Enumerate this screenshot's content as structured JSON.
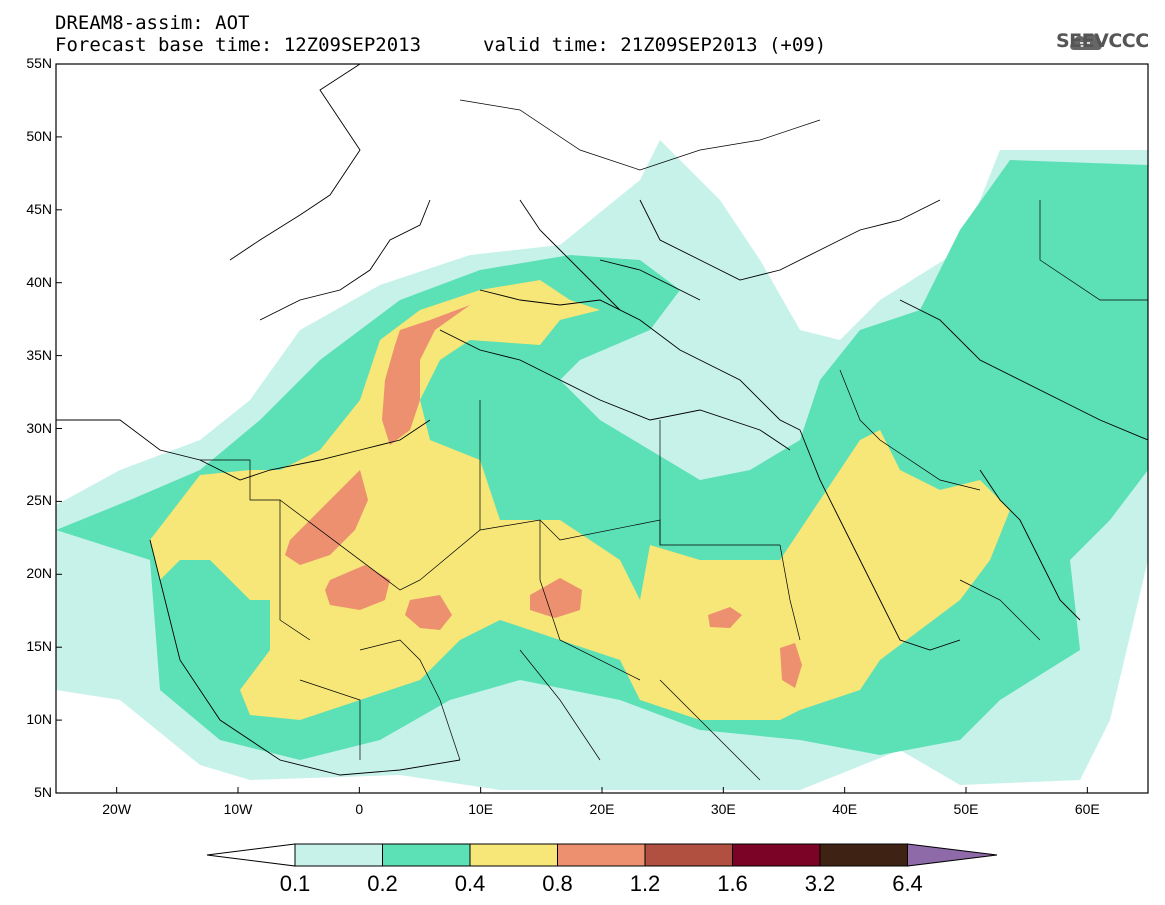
{
  "header": {
    "line1": "DREAM8-assim: AOT",
    "line2_left": "Forecast base time: 12Z09SEP2013",
    "line2_right": "valid time: 21Z09SEP2013 (+09)",
    "logo_text": "SEEVCCC"
  },
  "axes": {
    "lat_labels": [
      "55N",
      "50N",
      "45N",
      "40N",
      "35N",
      "30N",
      "25N",
      "20N",
      "15N",
      "10N",
      "5N"
    ],
    "lat_values": [
      55,
      50,
      45,
      40,
      35,
      30,
      25,
      20,
      15,
      10,
      5
    ],
    "lon_labels": [
      "20W",
      "10W",
      "0",
      "10E",
      "20E",
      "30E",
      "40E",
      "50E",
      "60E"
    ],
    "lon_values": [
      -20,
      -10,
      0,
      10,
      20,
      30,
      40,
      50,
      60
    ],
    "lon_range": [
      -25,
      65
    ],
    "lat_range": [
      5,
      55
    ]
  },
  "colorbar": {
    "labels": [
      "0.1",
      "0.2",
      "0.4",
      "0.8",
      "1.2",
      "1.6",
      "3.2",
      "6.4"
    ],
    "colors": [
      "#c7f2ea",
      "#5ce0b5",
      "#f7e678",
      "#ec9070",
      "#b14f40",
      "#7b0426",
      "#3e2314",
      "#8e6aa8"
    ]
  }
}
